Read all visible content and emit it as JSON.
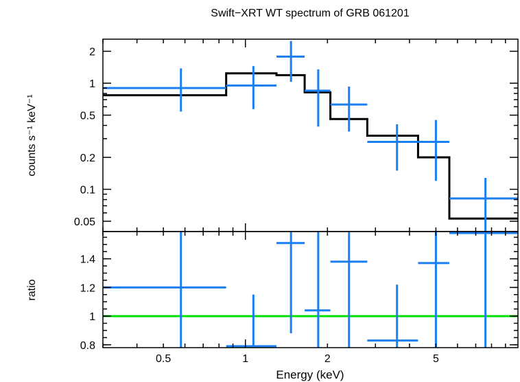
{
  "chart_data": [
    {
      "type": "line",
      "panel": "spectrum",
      "title": "Swift−XRT WT spectrum of GRB 061201",
      "ylabel": "counts s⁻¹ keV⁻¹",
      "xlabel": "Energy (keV)",
      "xscale": "log",
      "yscale": "log",
      "xlim": [
        0.3,
        10.0
      ],
      "ylim": [
        0.04,
        2.6
      ],
      "yticks": [
        0.05,
        0.1,
        0.2,
        0.5,
        1,
        2
      ],
      "ytick_labels": [
        "0.05",
        "0.1",
        "0.2",
        "0.5",
        "1",
        "2"
      ],
      "xticks": [
        0.5,
        1,
        2,
        5
      ],
      "series": [
        {
          "kind": "errorbar",
          "color": "#1a7ff0",
          "points": [
            {
              "x": 0.58,
              "xlo": 0.3,
              "xhi": 0.85,
              "y": 0.9,
              "ylo": 0.54,
              "yhi": 1.38
            },
            {
              "x": 1.07,
              "xlo": 0.85,
              "xhi": 1.3,
              "y": 0.95,
              "ylo": 0.57,
              "yhi": 1.45
            },
            {
              "x": 1.47,
              "xlo": 1.3,
              "xhi": 1.65,
              "y": 1.78,
              "ylo": 1.03,
              "yhi": 2.5
            },
            {
              "x": 1.85,
              "xlo": 1.65,
              "xhi": 2.05,
              "y": 0.85,
              "ylo": 0.39,
              "yhi": 1.35
            },
            {
              "x": 2.4,
              "xlo": 2.05,
              "xhi": 2.8,
              "y": 0.63,
              "ylo": 0.35,
              "yhi": 0.93
            },
            {
              "x": 3.6,
              "xlo": 2.8,
              "xhi": 4.3,
              "y": 0.28,
              "ylo": 0.15,
              "yhi": 0.41
            },
            {
              "x": 5.0,
              "xlo": 4.3,
              "xhi": 5.6,
              "y": 0.28,
              "ylo": 0.12,
              "yhi": 0.45
            },
            {
              "x": 7.6,
              "xlo": 5.6,
              "xhi": 10.0,
              "y": 0.082,
              "ylo": 0.04,
              "yhi": 0.128
            }
          ]
        },
        {
          "kind": "step",
          "color": "#000000",
          "bins": [
            {
              "xlo": 0.3,
              "xhi": 0.85,
              "y": 0.77
            },
            {
              "xlo": 0.85,
              "xhi": 1.3,
              "y": 1.24
            },
            {
              "xlo": 1.3,
              "xhi": 1.43,
              "y": 1.19
            },
            {
              "xlo": 1.43,
              "xhi": 1.65,
              "y": 1.19
            },
            {
              "xlo": 1.65,
              "xhi": 2.05,
              "y": 0.82
            },
            {
              "xlo": 2.05,
              "xhi": 2.8,
              "y": 0.46
            },
            {
              "xlo": 2.8,
              "xhi": 4.3,
              "y": 0.32
            },
            {
              "xlo": 4.3,
              "xhi": 5.6,
              "y": 0.2
            },
            {
              "xlo": 5.6,
              "xhi": 10.0,
              "y": 0.053
            }
          ]
        }
      ]
    },
    {
      "type": "scatter",
      "panel": "ratio",
      "ylabel": "ratio",
      "xlabel": "Energy (keV)",
      "xscale": "log",
      "xlim": [
        0.3,
        10.0
      ],
      "ylim": [
        0.78,
        1.59
      ],
      "yticks": [
        0.8,
        1.0,
        1.2,
        1.4
      ],
      "ytick_labels": [
        "0.8",
        "1",
        "1.2",
        "1.4"
      ],
      "xticks": [
        0.5,
        1,
        2,
        5
      ],
      "xtick_labels": [
        "0.5",
        "1",
        "2",
        "5"
      ],
      "reference_line": {
        "y": 1.0,
        "color": "#00e000"
      },
      "series": [
        {
          "kind": "errorbar",
          "color": "#1a7ff0",
          "points": [
            {
              "x": 0.58,
              "xlo": 0.3,
              "xhi": 0.85,
              "y": 1.2,
              "ylo": 0.78,
              "yhi": 1.59
            },
            {
              "x": 1.07,
              "xlo": 0.85,
              "xhi": 1.3,
              "y": 0.79,
              "ylo": 0.78,
              "yhi": 1.15
            },
            {
              "x": 1.47,
              "xlo": 1.3,
              "xhi": 1.65,
              "y": 1.51,
              "ylo": 0.88,
              "yhi": 1.59
            },
            {
              "x": 1.85,
              "xlo": 1.65,
              "xhi": 2.05,
              "y": 1.04,
              "ylo": 0.78,
              "yhi": 1.59
            },
            {
              "x": 2.4,
              "xlo": 2.05,
              "xhi": 2.8,
              "y": 1.38,
              "ylo": 0.78,
              "yhi": 1.59
            },
            {
              "x": 3.6,
              "xlo": 2.8,
              "xhi": 4.3,
              "y": 0.83,
              "ylo": 0.78,
              "yhi": 1.22
            },
            {
              "x": 5.0,
              "xlo": 4.3,
              "xhi": 5.6,
              "y": 1.37,
              "ylo": 0.78,
              "yhi": 1.59
            },
            {
              "x": 7.6,
              "xlo": 5.6,
              "xhi": 10.0,
              "y": 1.58,
              "ylo": 0.78,
              "yhi": 1.59
            }
          ]
        }
      ]
    }
  ]
}
